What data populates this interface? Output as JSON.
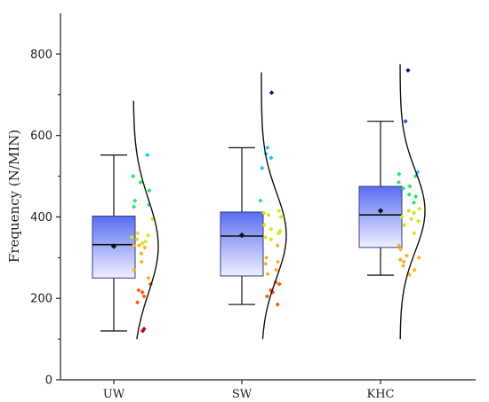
{
  "chart_data": {
    "type": "box",
    "title": "",
    "xlabel": "",
    "ylabel": "Frequency (N/MIN)",
    "ylim": [
      0,
      900
    ],
    "yticks": [
      0,
      200,
      400,
      600,
      800
    ],
    "grid": false,
    "categories": [
      "UW",
      "SW",
      "KHC"
    ],
    "colors": {
      "box_top": "#5a6ef0",
      "box_bottom": "#eef0ff",
      "box_edge": "#3a3a8a",
      "whisker": "#222222",
      "median": "#111111",
      "mean_marker": "#111111",
      "curve": "#111111",
      "point_scale": [
        "#0b0b8c",
        "#1f4fff",
        "#19c8ff",
        "#2ee36a",
        "#cfe81d",
        "#ffb02e",
        "#ff5a1a",
        "#b50d0d"
      ]
    },
    "boxes": [
      {
        "category": "UW",
        "whisker_low": 120,
        "q1": 250,
        "median": 332,
        "q3": 402,
        "whisker_high": 552,
        "mean": 328
      },
      {
        "category": "SW",
        "whisker_low": 185,
        "q1": 255,
        "median": 353,
        "q3": 412,
        "whisker_high": 570,
        "mean": 355
      },
      {
        "category": "KHC",
        "whisker_low": 257,
        "q1": 325,
        "median": 405,
        "q3": 475,
        "whisker_high": 635,
        "mean": 415
      }
    ],
    "points": [
      [
        552,
        500,
        485,
        465,
        440,
        430,
        425,
        395,
        360,
        355,
        350,
        345,
        340,
        335,
        330,
        330,
        325,
        310,
        290,
        270,
        250,
        235,
        220,
        215,
        205,
        190,
        125,
        120
      ],
      [
        705,
        570,
        555,
        545,
        520,
        440,
        415,
        410,
        405,
        400,
        380,
        370,
        365,
        360,
        350,
        345,
        330,
        300,
        290,
        285,
        270,
        260,
        240,
        235,
        220,
        215,
        205,
        185
      ],
      [
        760,
        635,
        510,
        505,
        500,
        485,
        475,
        470,
        455,
        450,
        435,
        420,
        415,
        410,
        400,
        395,
        390,
        380,
        360,
        330,
        320,
        305,
        300,
        295,
        290,
        280,
        270,
        258
      ]
    ],
    "distributions": [
      {
        "mean": 328,
        "sd": 115,
        "range": [
          100,
          685
        ]
      },
      {
        "mean": 355,
        "sd": 105,
        "range": [
          100,
          755
        ]
      },
      {
        "mean": 415,
        "sd": 100,
        "range": [
          100,
          775
        ]
      }
    ]
  }
}
